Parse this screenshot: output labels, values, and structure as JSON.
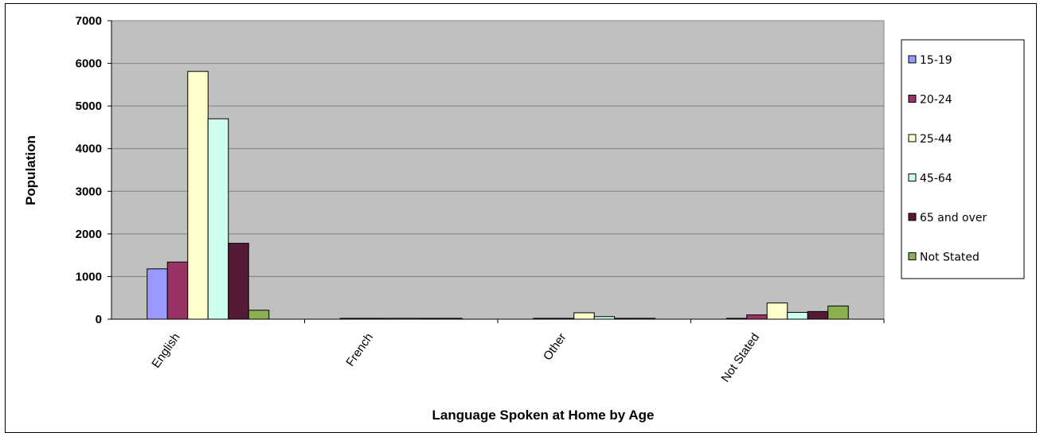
{
  "chart_data": {
    "type": "bar",
    "title": "",
    "xlabel": "Language Spoken at Home by Age",
    "ylabel": "Population",
    "ylim": [
      0,
      7000
    ],
    "yticks": [
      0,
      1000,
      2000,
      3000,
      4000,
      5000,
      6000,
      7000
    ],
    "grid": true,
    "legend_position": "right",
    "categories": [
      "English",
      "French",
      "Other",
      "Not Stated"
    ],
    "series": [
      {
        "name": "15-19",
        "color": "#9999FF",
        "values": [
          1180,
          20,
          20,
          20
        ]
      },
      {
        "name": "20-24",
        "color": "#993366",
        "values": [
          1340,
          20,
          20,
          100
        ]
      },
      {
        "name": "25-44",
        "color": "#FFFFCC",
        "values": [
          5810,
          20,
          150,
          380
        ]
      },
      {
        "name": "45-64",
        "color": "#CCFFEE",
        "values": [
          4700,
          20,
          60,
          160
        ]
      },
      {
        "name": "65 and over",
        "color": "#551A38",
        "values": [
          1780,
          20,
          20,
          180
        ]
      },
      {
        "name": "Not Stated",
        "color": "#8CB050",
        "values": [
          210,
          20,
          20,
          310
        ]
      }
    ],
    "plot_background": "#C0C0C0"
  }
}
